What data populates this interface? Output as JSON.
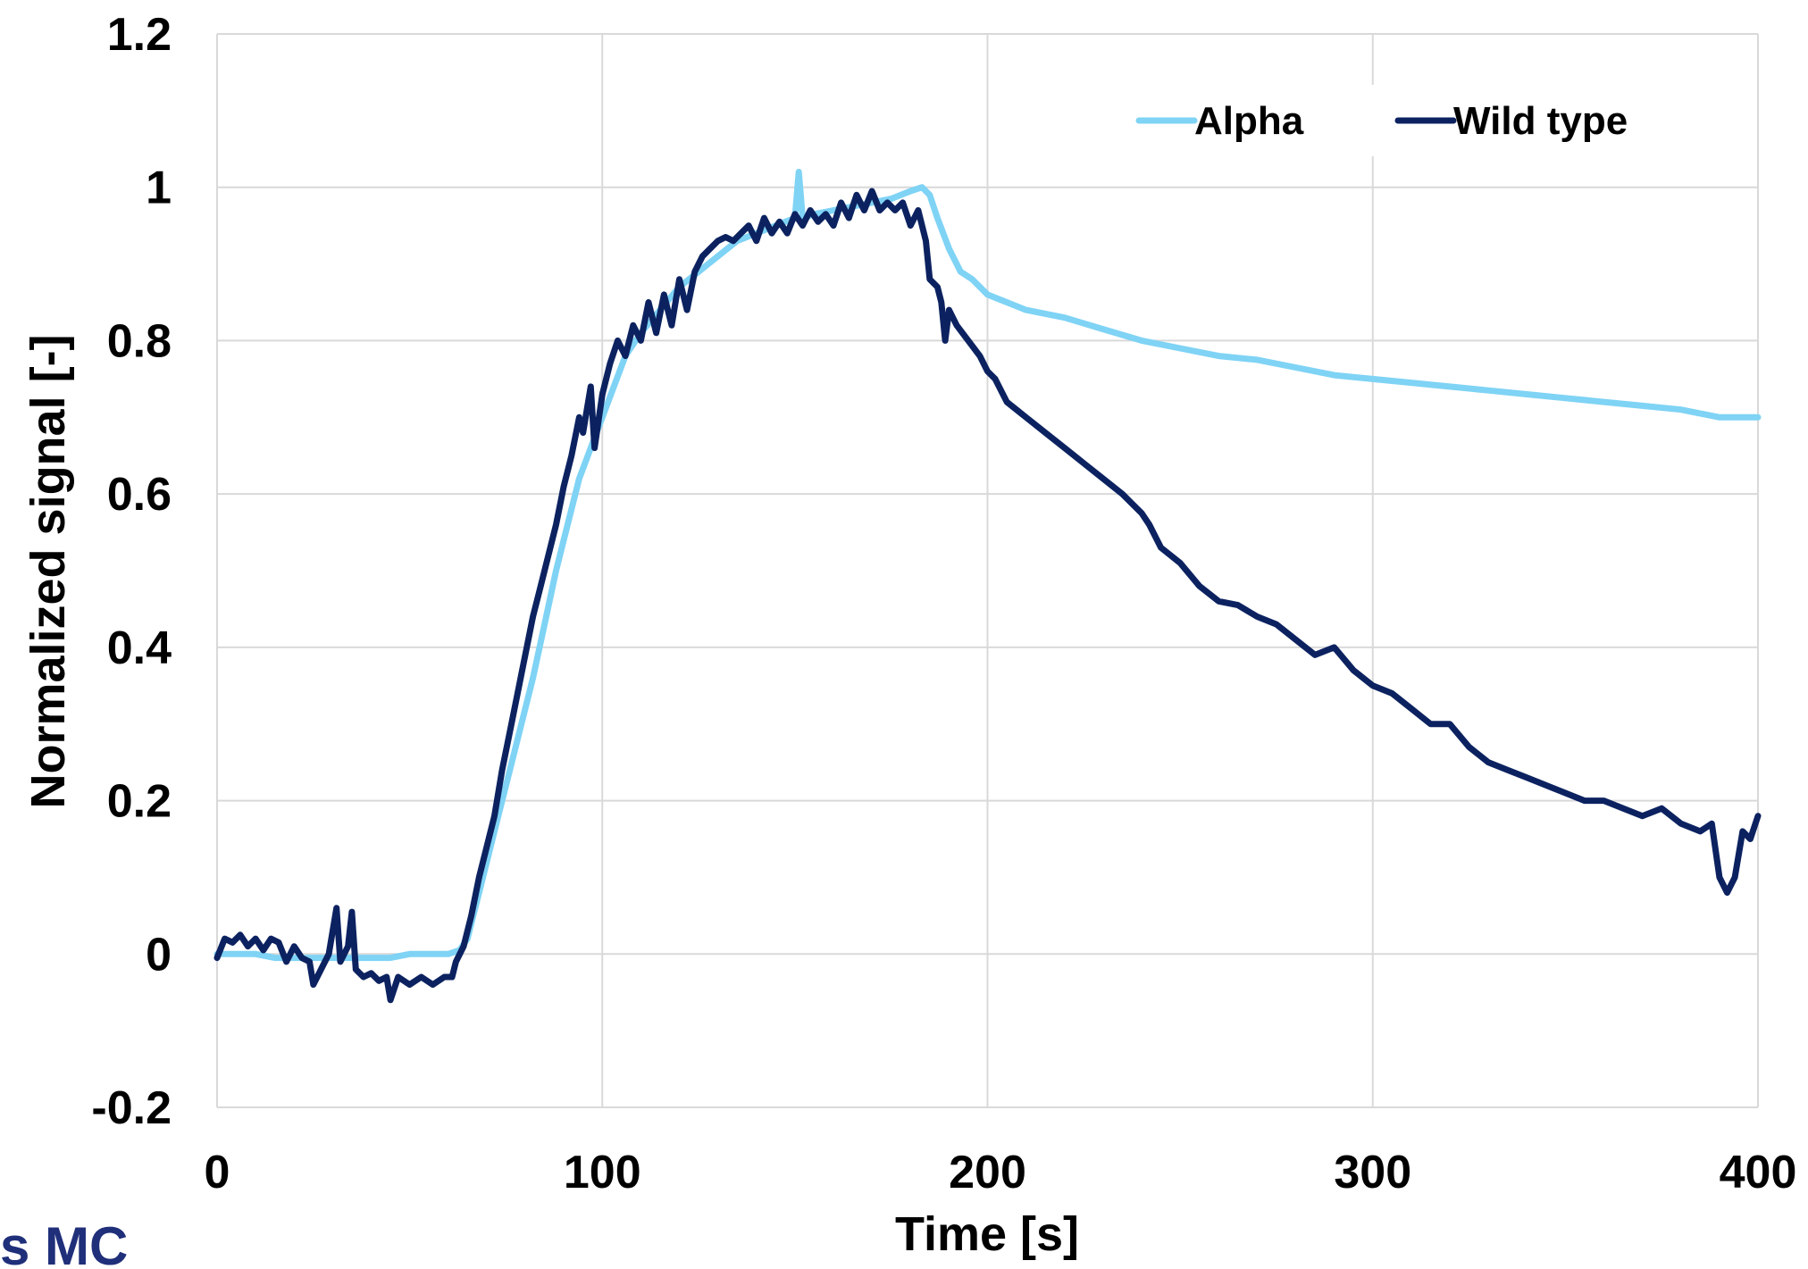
{
  "chart_data": {
    "type": "line",
    "title": "",
    "xlabel": "Time [s]",
    "ylabel": "Normalized signal [-]",
    "xlim": [
      0,
      400
    ],
    "ylim": [
      -0.2,
      1.2
    ],
    "x_ticks": [
      "0",
      "100",
      "200",
      "300",
      "400"
    ],
    "y_ticks": [
      "-0.2",
      "0",
      "0.2",
      "0.4",
      "0.6",
      "0.8",
      "1",
      "1.2"
    ],
    "grid": true,
    "legend_position": "top-right",
    "series": [
      {
        "name": "Alpha",
        "color": "#7fd3f5",
        "points": [
          [
            0,
            0.0
          ],
          [
            5,
            0.0
          ],
          [
            10,
            0.0
          ],
          [
            15,
            -0.005
          ],
          [
            20,
            -0.005
          ],
          [
            25,
            -0.005
          ],
          [
            30,
            -0.005
          ],
          [
            35,
            -0.005
          ],
          [
            40,
            -0.005
          ],
          [
            45,
            -0.005
          ],
          [
            50,
            0.0
          ],
          [
            55,
            0.0
          ],
          [
            60,
            0.0
          ],
          [
            63,
            0.005
          ],
          [
            65,
            0.02
          ],
          [
            68,
            0.08
          ],
          [
            70,
            0.12
          ],
          [
            73,
            0.18
          ],
          [
            76,
            0.24
          ],
          [
            79,
            0.3
          ],
          [
            82,
            0.36
          ],
          [
            85,
            0.43
          ],
          [
            88,
            0.5
          ],
          [
            91,
            0.56
          ],
          [
            94,
            0.62
          ],
          [
            97,
            0.66
          ],
          [
            100,
            0.7
          ],
          [
            103,
            0.74
          ],
          [
            106,
            0.78
          ],
          [
            110,
            0.81
          ],
          [
            115,
            0.84
          ],
          [
            120,
            0.87
          ],
          [
            125,
            0.89
          ],
          [
            130,
            0.91
          ],
          [
            135,
            0.93
          ],
          [
            140,
            0.94
          ],
          [
            145,
            0.95
          ],
          [
            150,
            0.96
          ],
          [
            151,
            1.02
          ],
          [
            152,
            0.96
          ],
          [
            155,
            0.965
          ],
          [
            160,
            0.97
          ],
          [
            165,
            0.975
          ],
          [
            170,
            0.98
          ],
          [
            175,
            0.985
          ],
          [
            180,
            0.995
          ],
          [
            183,
            1.0
          ],
          [
            185,
            0.99
          ],
          [
            187,
            0.96
          ],
          [
            190,
            0.92
          ],
          [
            193,
            0.89
          ],
          [
            196,
            0.88
          ],
          [
            200,
            0.86
          ],
          [
            205,
            0.85
          ],
          [
            210,
            0.84
          ],
          [
            220,
            0.83
          ],
          [
            230,
            0.815
          ],
          [
            240,
            0.8
          ],
          [
            250,
            0.79
          ],
          [
            260,
            0.78
          ],
          [
            270,
            0.775
          ],
          [
            280,
            0.765
          ],
          [
            290,
            0.755
          ],
          [
            300,
            0.75
          ],
          [
            310,
            0.745
          ],
          [
            320,
            0.74
          ],
          [
            330,
            0.735
          ],
          [
            340,
            0.73
          ],
          [
            350,
            0.725
          ],
          [
            360,
            0.72
          ],
          [
            370,
            0.715
          ],
          [
            380,
            0.71
          ],
          [
            390,
            0.7
          ],
          [
            400,
            0.7
          ]
        ]
      },
      {
        "name": "Wild type",
        "color": "#0c2260",
        "points": [
          [
            0,
            -0.005
          ],
          [
            2,
            0.02
          ],
          [
            4,
            0.015
          ],
          [
            6,
            0.025
          ],
          [
            8,
            0.01
          ],
          [
            10,
            0.02
          ],
          [
            12,
            0.005
          ],
          [
            14,
            0.02
          ],
          [
            16,
            0.015
          ],
          [
            18,
            -0.01
          ],
          [
            20,
            0.01
          ],
          [
            22,
            -0.005
          ],
          [
            24,
            -0.01
          ],
          [
            25,
            -0.04
          ],
          [
            27,
            -0.02
          ],
          [
            29,
            0.0
          ],
          [
            31,
            0.06
          ],
          [
            32,
            -0.01
          ],
          [
            34,
            0.01
          ],
          [
            35,
            0.055
          ],
          [
            36,
            -0.02
          ],
          [
            38,
            -0.03
          ],
          [
            40,
            -0.025
          ],
          [
            42,
            -0.035
          ],
          [
            44,
            -0.03
          ],
          [
            45,
            -0.06
          ],
          [
            47,
            -0.03
          ],
          [
            50,
            -0.04
          ],
          [
            53,
            -0.03
          ],
          [
            56,
            -0.04
          ],
          [
            59,
            -0.03
          ],
          [
            61,
            -0.03
          ],
          [
            62,
            -0.01
          ],
          [
            64,
            0.01
          ],
          [
            66,
            0.05
          ],
          [
            68,
            0.1
          ],
          [
            70,
            0.14
          ],
          [
            72,
            0.18
          ],
          [
            74,
            0.24
          ],
          [
            76,
            0.29
          ],
          [
            78,
            0.34
          ],
          [
            80,
            0.39
          ],
          [
            82,
            0.44
          ],
          [
            84,
            0.48
          ],
          [
            86,
            0.52
          ],
          [
            88,
            0.56
          ],
          [
            90,
            0.61
          ],
          [
            92,
            0.65
          ],
          [
            94,
            0.7
          ],
          [
            95,
            0.68
          ],
          [
            97,
            0.74
          ],
          [
            98,
            0.66
          ],
          [
            100,
            0.73
          ],
          [
            102,
            0.77
          ],
          [
            104,
            0.8
          ],
          [
            106,
            0.78
          ],
          [
            108,
            0.82
          ],
          [
            110,
            0.8
          ],
          [
            112,
            0.85
          ],
          [
            114,
            0.81
          ],
          [
            116,
            0.86
          ],
          [
            118,
            0.82
          ],
          [
            120,
            0.88
          ],
          [
            122,
            0.84
          ],
          [
            124,
            0.89
          ],
          [
            126,
            0.91
          ],
          [
            128,
            0.92
          ],
          [
            130,
            0.93
          ],
          [
            132,
            0.935
          ],
          [
            134,
            0.93
          ],
          [
            136,
            0.94
          ],
          [
            138,
            0.95
          ],
          [
            140,
            0.93
          ],
          [
            142,
            0.96
          ],
          [
            144,
            0.94
          ],
          [
            146,
            0.955
          ],
          [
            148,
            0.94
          ],
          [
            150,
            0.965
          ],
          [
            152,
            0.95
          ],
          [
            154,
            0.97
          ],
          [
            156,
            0.955
          ],
          [
            158,
            0.965
          ],
          [
            160,
            0.95
          ],
          [
            162,
            0.98
          ],
          [
            164,
            0.96
          ],
          [
            166,
            0.99
          ],
          [
            168,
            0.97
          ],
          [
            170,
            0.995
          ],
          [
            172,
            0.97
          ],
          [
            174,
            0.98
          ],
          [
            176,
            0.97
          ],
          [
            178,
            0.98
          ],
          [
            180,
            0.95
          ],
          [
            182,
            0.97
          ],
          [
            184,
            0.93
          ],
          [
            185,
            0.88
          ],
          [
            187,
            0.87
          ],
          [
            188,
            0.85
          ],
          [
            189,
            0.8
          ],
          [
            190,
            0.84
          ],
          [
            192,
            0.82
          ],
          [
            195,
            0.8
          ],
          [
            198,
            0.78
          ],
          [
            200,
            0.76
          ],
          [
            202,
            0.75
          ],
          [
            205,
            0.72
          ],
          [
            210,
            0.7
          ],
          [
            215,
            0.68
          ],
          [
            220,
            0.66
          ],
          [
            225,
            0.64
          ],
          [
            230,
            0.62
          ],
          [
            235,
            0.6
          ],
          [
            240,
            0.575
          ],
          [
            242,
            0.56
          ],
          [
            245,
            0.53
          ],
          [
            250,
            0.51
          ],
          [
            255,
            0.48
          ],
          [
            260,
            0.46
          ],
          [
            265,
            0.455
          ],
          [
            270,
            0.44
          ],
          [
            275,
            0.43
          ],
          [
            280,
            0.41
          ],
          [
            285,
            0.39
          ],
          [
            290,
            0.4
          ],
          [
            295,
            0.37
          ],
          [
            300,
            0.35
          ],
          [
            305,
            0.34
          ],
          [
            310,
            0.32
          ],
          [
            315,
            0.3
          ],
          [
            320,
            0.3
          ],
          [
            325,
            0.27
          ],
          [
            330,
            0.25
          ],
          [
            335,
            0.24
          ],
          [
            340,
            0.23
          ],
          [
            345,
            0.22
          ],
          [
            350,
            0.21
          ],
          [
            355,
            0.2
          ],
          [
            360,
            0.2
          ],
          [
            365,
            0.19
          ],
          [
            370,
            0.18
          ],
          [
            375,
            0.19
          ],
          [
            380,
            0.17
          ],
          [
            385,
            0.16
          ],
          [
            388,
            0.17
          ],
          [
            390,
            0.1
          ],
          [
            392,
            0.08
          ],
          [
            394,
            0.1
          ],
          [
            396,
            0.16
          ],
          [
            398,
            0.15
          ],
          [
            400,
            0.18
          ]
        ]
      }
    ]
  },
  "watermark": "s MC"
}
